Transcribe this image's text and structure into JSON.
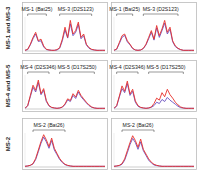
{
  "chart_data": [
    {
      "type": "line",
      "ylabel": "MS-1 and MS-3",
      "tick_labels": false,
      "xlim": [
        0,
        30
      ],
      "ylim": [
        0,
        100
      ],
      "x": [
        0,
        1,
        2,
        3,
        4,
        5,
        6,
        7,
        8,
        9,
        10,
        11,
        12,
        13,
        14,
        15,
        16,
        17,
        18,
        19,
        20,
        21,
        22,
        23,
        24,
        25,
        26,
        27,
        28,
        29,
        30
      ],
      "series": [
        {
          "color": "#6a4fc0",
          "values": [
            2,
            4,
            18,
            36,
            50,
            28,
            30,
            12,
            4,
            3,
            2,
            2,
            3,
            8,
            30,
            62,
            38,
            80,
            45,
            55,
            78,
            36,
            45,
            18,
            8,
            4,
            3,
            2,
            2,
            2,
            2
          ]
        },
        {
          "color": "#e8302a",
          "values": [
            2,
            5,
            20,
            40,
            55,
            30,
            35,
            15,
            5,
            3,
            2,
            2,
            4,
            10,
            35,
            70,
            40,
            90,
            50,
            60,
            85,
            40,
            50,
            20,
            10,
            5,
            3,
            2,
            2,
            2,
            2
          ]
        }
      ],
      "annotations": [
        {
          "text": "MS-1 (Bat25)",
          "x": [
            1,
            8
          ]
        },
        {
          "text": "MS-3 (D2S123)",
          "x": [
            13,
            25
          ]
        }
      ]
    },
    {
      "type": "line",
      "tick_labels": false,
      "xlim": [
        0,
        30
      ],
      "ylim": [
        0,
        100
      ],
      "x": [
        0,
        1,
        2,
        3,
        4,
        5,
        6,
        7,
        8,
        9,
        10,
        11,
        12,
        13,
        14,
        15,
        16,
        17,
        18,
        19,
        20,
        21,
        22,
        23,
        24,
        25,
        26,
        27,
        28,
        29,
        30
      ],
      "series": [
        {
          "color": "#6a4fc0",
          "values": [
            2,
            5,
            22,
            40,
            46,
            27,
            18,
            7,
            3,
            2,
            3,
            7,
            18,
            36,
            55,
            32,
            68,
            40,
            60,
            82,
            50,
            64,
            27,
            13,
            7,
            4,
            2,
            2,
            2,
            2,
            2
          ]
        },
        {
          "color": "#e8302a",
          "values": [
            2,
            6,
            25,
            45,
            50,
            30,
            20,
            8,
            3,
            2,
            3,
            8,
            20,
            40,
            60,
            35,
            75,
            45,
            65,
            90,
            55,
            70,
            30,
            15,
            8,
            4,
            2,
            2,
            2,
            2,
            2
          ]
        }
      ],
      "annotations": [
        {
          "text": "MS-1 (Bat25)",
          "x": [
            1,
            7
          ]
        },
        {
          "text": "MS-3 (D2S123)",
          "x": [
            11,
            24
          ]
        }
      ]
    },
    {
      "type": "line",
      "ylabel": "MS-4 and MS-5",
      "tick_labels": false,
      "xlim": [
        0,
        30
      ],
      "ylim": [
        0,
        100
      ],
      "x": [
        0,
        1,
        2,
        3,
        4,
        5,
        6,
        7,
        8,
        9,
        10,
        11,
        12,
        13,
        14,
        15,
        16,
        17,
        18,
        19,
        20,
        21,
        22,
        23,
        24,
        25,
        26,
        27,
        28,
        29,
        30
      ],
      "series": [
        {
          "color": "#6a4fc0",
          "values": [
            2,
            9,
            36,
            64,
            50,
            78,
            42,
            55,
            22,
            9,
            4,
            3,
            2,
            3,
            5,
            13,
            27,
            22,
            40,
            31,
            50,
            36,
            27,
            18,
            10,
            5,
            3,
            2,
            2,
            2,
            2
          ]
        },
        {
          "color": "#e8302a",
          "values": [
            2,
            10,
            40,
            70,
            55,
            85,
            45,
            60,
            25,
            10,
            5,
            3,
            2,
            3,
            6,
            15,
            30,
            25,
            45,
            35,
            55,
            40,
            30,
            20,
            12,
            6,
            3,
            2,
            2,
            2,
            2
          ]
        }
      ],
      "annotations": [
        {
          "text": "MS-4 (D2S346)",
          "x": [
            1,
            9
          ]
        },
        {
          "text": "MS-5 (D17S250)",
          "x": [
            13,
            26
          ]
        }
      ]
    },
    {
      "type": "line",
      "tick_labels": false,
      "xlim": [
        0,
        30
      ],
      "ylim": [
        0,
        100
      ],
      "x": [
        0,
        1,
        2,
        3,
        4,
        5,
        6,
        7,
        8,
        9,
        10,
        11,
        12,
        13,
        14,
        15,
        16,
        17,
        18,
        19,
        20,
        21,
        22,
        23,
        24,
        25,
        26,
        27,
        28,
        29,
        30
      ],
      "series": [
        {
          "color": "#6a4fc0",
          "values": [
            2,
            8,
            35,
            60,
            48,
            75,
            40,
            52,
            20,
            8,
            4,
            3,
            2,
            3,
            5,
            10,
            20,
            16,
            28,
            22,
            34,
            26,
            20,
            14,
            8,
            4,
            3,
            2,
            2,
            2,
            2
          ]
        },
        {
          "color": "#e8302a",
          "values": [
            2,
            10,
            38,
            68,
            52,
            82,
            44,
            58,
            24,
            10,
            5,
            3,
            2,
            3,
            6,
            16,
            32,
            26,
            48,
            36,
            58,
            42,
            32,
            20,
            12,
            6,
            3,
            2,
            2,
            2,
            2
          ]
        }
      ],
      "annotations": [
        {
          "text": "MS-4 (D2S346)",
          "x": [
            1,
            9
          ]
        },
        {
          "text": "MS-5 (D17S250)",
          "x": [
            13,
            26
          ]
        }
      ]
    },
    {
      "type": "line",
      "ylabel": "MS-2",
      "tick_labels": false,
      "xlim": [
        0,
        30
      ],
      "ylim": [
        0,
        100
      ],
      "x": [
        0,
        1,
        2,
        3,
        4,
        5,
        6,
        7,
        8,
        9,
        10,
        11,
        12,
        13,
        14,
        15,
        16,
        17,
        18,
        19,
        20,
        21,
        22,
        23,
        24,
        25,
        26,
        27,
        28,
        29,
        30
      ],
      "series": [
        {
          "color": "#6a4fc0",
          "values": [
            2,
            3,
            5,
            9,
            22,
            45,
            70,
            88,
            74,
            55,
            78,
            50,
            36,
            22,
            13,
            7,
            4,
            3,
            2,
            2,
            2,
            2,
            2,
            2,
            2,
            2,
            2,
            2,
            2,
            2,
            2
          ]
        },
        {
          "color": "#e8302a",
          "values": [
            2,
            3,
            5,
            10,
            25,
            50,
            75,
            95,
            80,
            60,
            85,
            55,
            40,
            25,
            15,
            8,
            5,
            3,
            2,
            2,
            2,
            2,
            2,
            2,
            2,
            2,
            2,
            2,
            2,
            2,
            2
          ]
        }
      ],
      "annotations": [
        {
          "text": "MS-2 (Bat26)",
          "x": [
            3,
            15
          ]
        }
      ]
    },
    {
      "type": "line",
      "tick_labels": false,
      "xlim": [
        0,
        30
      ],
      "ylim": [
        0,
        100
      ],
      "x": [
        0,
        1,
        2,
        3,
        4,
        5,
        6,
        7,
        8,
        9,
        10,
        11,
        12,
        13,
        14,
        15,
        16,
        17,
        18,
        19,
        20,
        21,
        22,
        23,
        24,
        25,
        26,
        27,
        28,
        29,
        30
      ],
      "series": [
        {
          "color": "#6a4fc0",
          "values": [
            2,
            3,
            4,
            8,
            20,
            42,
            66,
            84,
            72,
            52,
            74,
            48,
            34,
            20,
            12,
            6,
            4,
            3,
            2,
            2,
            2,
            2,
            2,
            2,
            2,
            2,
            2,
            2,
            2,
            2,
            2
          ]
        },
        {
          "color": "#e8302a",
          "values": [
            2,
            3,
            5,
            10,
            24,
            48,
            72,
            92,
            78,
            58,
            82,
            52,
            38,
            24,
            14,
            8,
            5,
            3,
            2,
            2,
            2,
            2,
            2,
            2,
            2,
            2,
            2,
            2,
            2,
            2,
            2
          ]
        }
      ],
      "annotations": [
        {
          "text": "MS-2 (Bat26)",
          "x": [
            3,
            15
          ]
        }
      ]
    }
  ]
}
